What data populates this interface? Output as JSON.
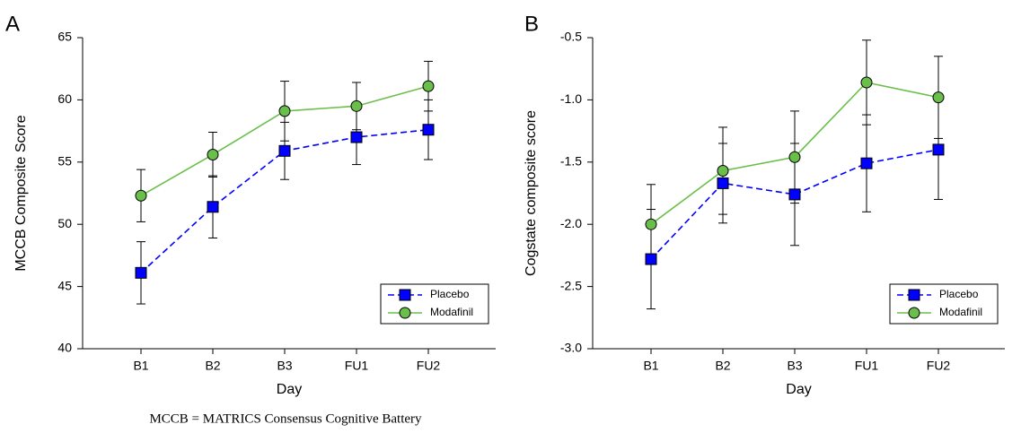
{
  "chart_data": [
    {
      "type": "line",
      "panel": "A",
      "x_label": "Day",
      "y_label": "MCCB Composite Score",
      "categories": [
        "B1",
        "B2",
        "B3",
        "FU1",
        "FU2"
      ],
      "ylim": [
        40,
        65
      ],
      "yticks": [
        40,
        45,
        50,
        55,
        60,
        65
      ],
      "legend": "lower right",
      "series": [
        {
          "name": "Placebo",
          "color": "#0000ff",
          "marker": "square",
          "dashed": true,
          "values": [
            46.1,
            51.4,
            55.9,
            57.0,
            57.6
          ],
          "errors": [
            2.5,
            2.5,
            2.3,
            2.2,
            2.4
          ]
        },
        {
          "name": "Modafinil",
          "color": "#6abf4b",
          "marker": "circle",
          "dashed": false,
          "values": [
            52.3,
            55.6,
            59.1,
            59.5,
            61.1
          ],
          "errors": [
            2.1,
            1.8,
            2.4,
            1.9,
            2.0
          ]
        }
      ]
    },
    {
      "type": "line",
      "panel": "B",
      "x_label": "Day",
      "y_label": "Cogstate composite score",
      "categories": [
        "B1",
        "B2",
        "B3",
        "FU1",
        "FU2"
      ],
      "ylim": [
        -3.0,
        -0.5
      ],
      "yticks": [
        {
          "value": -3,
          "label": "-3.0"
        },
        -2.5,
        {
          "value": -2,
          "label": "-2.0"
        },
        -1.5,
        {
          "value": -1,
          "label": "-1.0"
        },
        -0.5
      ],
      "legend": "lower right",
      "series": [
        {
          "name": "Placebo",
          "color": "#0000ff",
          "marker": "square",
          "dashed": true,
          "values": [
            -2.28,
            -1.67,
            -1.76,
            -1.51,
            -1.4
          ],
          "errors": [
            0.4,
            0.32,
            0.41,
            0.39,
            0.4
          ]
        },
        {
          "name": "Modafinil",
          "color": "#6abf4b",
          "marker": "circle",
          "dashed": false,
          "values": [
            -2.0,
            -1.57,
            -1.46,
            -0.86,
            -0.98
          ],
          "errors": [
            0.32,
            0.35,
            0.37,
            0.34,
            0.33
          ]
        }
      ]
    }
  ],
  "caption": "MCCB = MATRICS Consensus Cognitive Battery"
}
